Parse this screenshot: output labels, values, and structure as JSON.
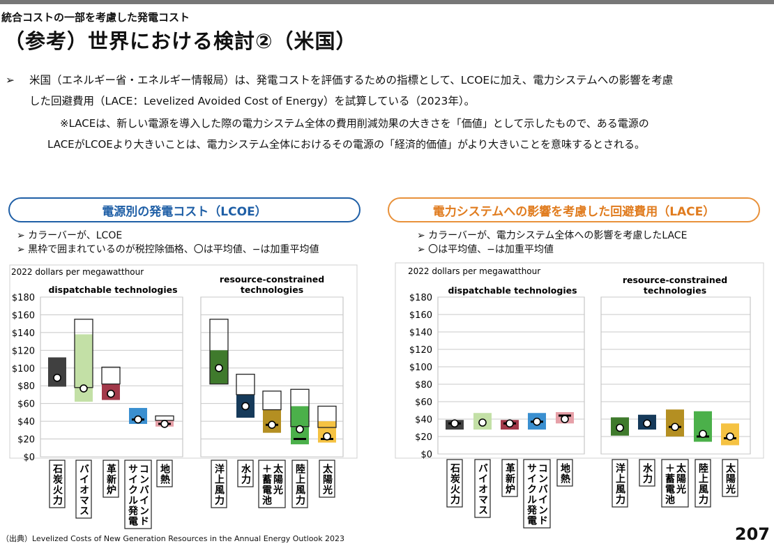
{
  "header": {
    "subtitle": "統合コストの一部を考慮した発電コスト",
    "title": "（参考）世界における検討②（米国）"
  },
  "bullets": {
    "marker": "➢",
    "line1": "米国（エネルギー省・エネルギー情報局）は、発電コストを評価するための指標として、LCOEに加え、電力システムへの影響を考慮",
    "line2": "した回避費用（LACE：Levelized Avoided Cost of Energy）を試算している（2023年）。",
    "note1": "※LACEは、新しい電源を導入した際の電力システム全体の費用削減効果の大きさを「価値」として示したもので、ある電源の",
    "note2": "LACEがLCOEより大きいことは、電力システム全体におけるその電源の「経済的価値」がより大きいことを意味するとされる。"
  },
  "left_panel": {
    "heading": "電源別の発電コスト（LCOE）",
    "note1": "➢ カラーバーが、LCOE",
    "note2": "➢ 黒枠で囲まれているのが税控除価格、〇は平均値、−は加重平均値"
  },
  "right_panel": {
    "heading": "電力システムへの影響を考慮した回避費用（LACE）",
    "note1": "➢ カラーバーが、電力システム全体への影響を考慮したLACE",
    "note2": "➢ 〇は平均値、−は加重平均値"
  },
  "colors": {
    "coal": "#404040",
    "biomass": "#c3e0a6",
    "nuclear": "#a2394a",
    "gas": "#3a8fd0",
    "geothermal": "#e6a0a8",
    "offshore_wind": "#3f7a2c",
    "hydro": "#163a5a",
    "solar_battery": "#b48f22",
    "onshore_wind": "#4bb04a",
    "solar": "#f5c242"
  },
  "chart_data": [
    {
      "type": "range-bar",
      "unit_label": "2022 dollars per megawatthour",
      "group_labels": [
        "dispatchable technologies",
        "resource-constrained technologies"
      ],
      "ylim": [
        0,
        180
      ],
      "yticks": [
        "$0",
        "$20",
        "$40",
        "$60",
        "$80",
        "$100",
        "$120",
        "$140",
        "$160",
        "$180"
      ],
      "categories": [
        "石炭火力",
        "バイオマス",
        "革新炉",
        "コンバインドサイクル発電",
        "地熱",
        "洋上風力",
        "水力",
        "太陽光＋蓄電池",
        "陸上風力",
        "太陽光"
      ],
      "category_lines": [
        [
          "石炭火力"
        ],
        [
          "バイオマス"
        ],
        [
          "革新炉"
        ],
        [
          "コンバインド",
          "サイクル発電"
        ],
        [
          "地熱"
        ],
        [
          "洋上風力"
        ],
        [
          "水力"
        ],
        [
          "太陽光",
          "＋蓄電池"
        ],
        [
          "陸上風力"
        ],
        [
          "太陽光"
        ]
      ],
      "series": [
        {
          "category": "石炭火力",
          "color_key": "coal",
          "bar": [
            79,
            112
          ],
          "tax_credit": null,
          "average": 89,
          "weighted": null
        },
        {
          "category": "バイオマス",
          "color_key": "biomass",
          "bar": [
            62,
            138
          ],
          "tax_credit": [
            78,
            155
          ],
          "average": 77,
          "weighted": null
        },
        {
          "category": "革新炉",
          "color_key": "nuclear",
          "bar": [
            64,
            82
          ],
          "tax_credit": [
            82,
            101
          ],
          "average": 71,
          "weighted": null
        },
        {
          "category": "コンバインドサイクル発電",
          "color_key": "gas",
          "bar": [
            37,
            55
          ],
          "tax_credit": null,
          "average": 42,
          "weighted": 42
        },
        {
          "category": "地熱",
          "color_key": "geothermal",
          "bar": [
            34,
            41
          ],
          "tax_credit": [
            41,
            46
          ],
          "average": 37,
          "weighted": 37
        },
        {
          "category": "洋上風力",
          "color_key": "offshore_wind",
          "bar": [
            82,
            120
          ],
          "tax_credit": [
            82,
            155
          ],
          "average": 100,
          "weighted": null
        },
        {
          "category": "水力",
          "color_key": "hydro",
          "bar": [
            44,
            70
          ],
          "tax_credit": [
            70,
            93
          ],
          "average": 57,
          "weighted": null
        },
        {
          "category": "太陽光＋蓄電池",
          "color_key": "solar_battery",
          "bar": [
            27,
            53
          ],
          "tax_credit": [
            53,
            74
          ],
          "average": 36,
          "weighted": 36
        },
        {
          "category": "陸上風力",
          "color_key": "onshore_wind",
          "bar": [
            14,
            57
          ],
          "tax_credit": [
            34,
            76
          ],
          "average": 31,
          "weighted": 20
        },
        {
          "category": "太陽光",
          "color_key": "solar",
          "bar": [
            16,
            40
          ],
          "tax_credit": [
            33,
            57
          ],
          "average": 23,
          "weighted": 20
        }
      ]
    },
    {
      "type": "range-bar",
      "unit_label": "2022 dollars per megawatthour",
      "group_labels": [
        "dispatchable technologies",
        "resource-constrained technologies"
      ],
      "ylim": [
        0,
        180
      ],
      "yticks": [
        "$0",
        "$20",
        "$40",
        "$60",
        "$80",
        "$100",
        "$120",
        "$140",
        "$160",
        "$180"
      ],
      "categories": [
        "石炭火力",
        "バイオマス",
        "革新炉",
        "コンバインドサイクル発電",
        "地熱",
        "洋上風力",
        "水力",
        "太陽光＋蓄電池",
        "陸上風力",
        "太陽光"
      ],
      "category_lines": [
        [
          "石炭火力"
        ],
        [
          "バイオマス"
        ],
        [
          "革新炉"
        ],
        [
          "コンバインド",
          "サイクル発電"
        ],
        [
          "地熱"
        ],
        [
          "洋上風力"
        ],
        [
          "水力"
        ],
        [
          "太陽光",
          "＋蓄電池"
        ],
        [
          "陸上風力"
        ],
        [
          "太陽光"
        ]
      ],
      "series": [
        {
          "category": "石炭火力",
          "color_key": "coal",
          "bar": [
            28,
            39
          ],
          "average": 35,
          "weighted": 35
        },
        {
          "category": "バイオマス",
          "color_key": "biomass",
          "bar": [
            28,
            47
          ],
          "average": 36,
          "weighted": null
        },
        {
          "category": "革新炉",
          "color_key": "nuclear",
          "bar": [
            28,
            39
          ],
          "average": 35,
          "weighted": 35
        },
        {
          "category": "コンバインドサイクル発電",
          "color_key": "gas",
          "bar": [
            28,
            47
          ],
          "average": 37,
          "weighted": 37
        },
        {
          "category": "地熱",
          "color_key": "geothermal",
          "bar": [
            35,
            48
          ],
          "average": 40,
          "weighted": 44
        },
        {
          "category": "洋上風力",
          "color_key": "offshore_wind",
          "bar": [
            21,
            42
          ],
          "average": 30,
          "weighted": null
        },
        {
          "category": "水力",
          "color_key": "hydro",
          "bar": [
            28,
            45
          ],
          "average": 35,
          "weighted": null
        },
        {
          "category": "太陽光＋蓄電池",
          "color_key": "solar_battery",
          "bar": [
            20,
            51
          ],
          "average": 31,
          "weighted": 31
        },
        {
          "category": "陸上風力",
          "color_key": "onshore_wind",
          "bar": [
            14,
            49
          ],
          "average": 23,
          "weighted": 20
        },
        {
          "category": "太陽光",
          "color_key": "solar",
          "bar": [
            10,
            35
          ],
          "average": 20,
          "weighted": 18
        }
      ]
    }
  ],
  "footer": {
    "source": "（出典）Levelized Costs of New Generation Resources in the Annual Energy Outlook 2023",
    "page_number": "207"
  }
}
